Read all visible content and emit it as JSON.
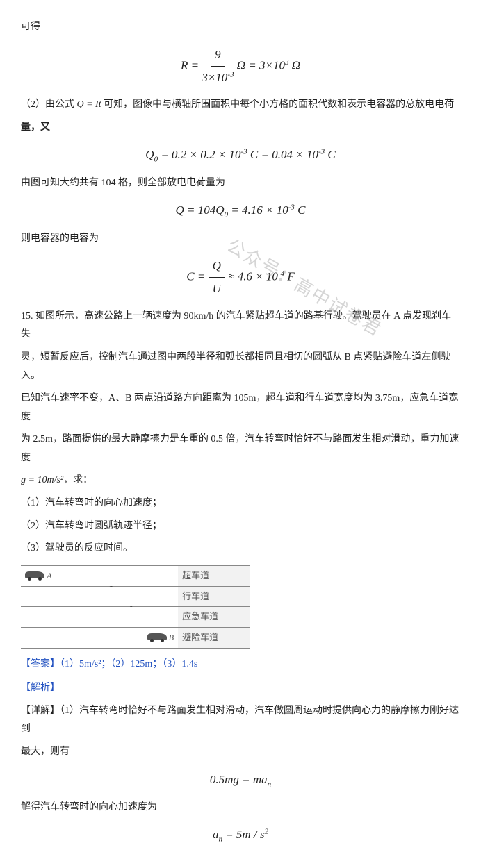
{
  "watermark": "公众号：高中试卷君",
  "p1": "可得",
  "f1_html": "<i>R</i> = <span style='display:inline-block;vertical-align:middle'><span class='up'>9</span><br>3×10<sup>-3</sup></span> Ω = 3×10<sup>3</sup> Ω",
  "p2_prefix": "（2）由公式",
  "p2_formula": "Q = It",
  "p2_suffix": "可知，图像中与横轴所围面积中每个小方格的面积代数和表示电容器的总放电电荷",
  "p2b": "量，又",
  "f2_html": "<i>Q</i><sub>0</sub> = 0.2 × 0.2 × 10<sup>-3</sup> C = 0.04 × 10<sup>-3</sup> C",
  "p3": "由图可知大约共有 104 格，则全部放电电荷量为",
  "f3_html": "<i>Q</i> = 104<i>Q</i><sub>0</sub> = 4.16 × 10<sup>-3</sup> C",
  "p4": "则电容器的电容为",
  "f4_html": "<i>C</i> = <span style='display:inline-block;vertical-align:middle'><span class='up'><i>Q</i></span><br><i>U</i></span> ≈ 4.6 × 10<sup>-4</sup> F",
  "q15a": "15. 如图所示，高速公路上一辆速度为 90km/h 的汽车紧贴超车道的路基行驶。驾驶员在 A 点发现刹车失",
  "q15b": "灵，短暂反应后，控制汽车通过图中两段半径和弧长都相同且相切的圆弧从 B 点紧贴避险车道左侧驶入。",
  "q15c": "已知汽车速率不变，A、B 两点沿道路方向距离为 105m，超车道和行车道宽度均为 3.75m，应急车道宽度",
  "q15d_prefix": "为 2.5m，路面提供的最大静摩擦力是车重的 0.5 倍，汽车转弯时恰好不与路面发生相对滑动，重力加速度",
  "q15e_formula": "g = 10m/s²",
  "q15e_suffix": "，求：",
  "sub1": "（1）汽车转弯时的向心加速度；",
  "sub2": "（2）汽车转弯时圆弧轨迹半径；",
  "sub3": "（3）驾驶员的反应时间。",
  "lanes": {
    "l1": "超车道",
    "l2": "行车道",
    "l3": "应急车道",
    "l4": "避险车道"
  },
  "ptA": "A",
  "ptB": "B",
  "answer": "【答案】（1）5m/s²；（2）125m；（3）1.4s",
  "jiexi": "【解析】",
  "detail": "【详解】（1）汽车转弯时恰好不与路面发生相对滑动，汽车做圆周运动时提供向心力的静摩擦力刚好达到",
  "detail2": "最大，则有",
  "f5_html": "0.5<i>mg</i> = <i>ma</i><sub>n</sub>",
  "p5": "解得汽车转弯时的向心加速度为",
  "f6_html": "<i>a</i><sub>n</sub> = 5m / s<sup>2</sup>"
}
